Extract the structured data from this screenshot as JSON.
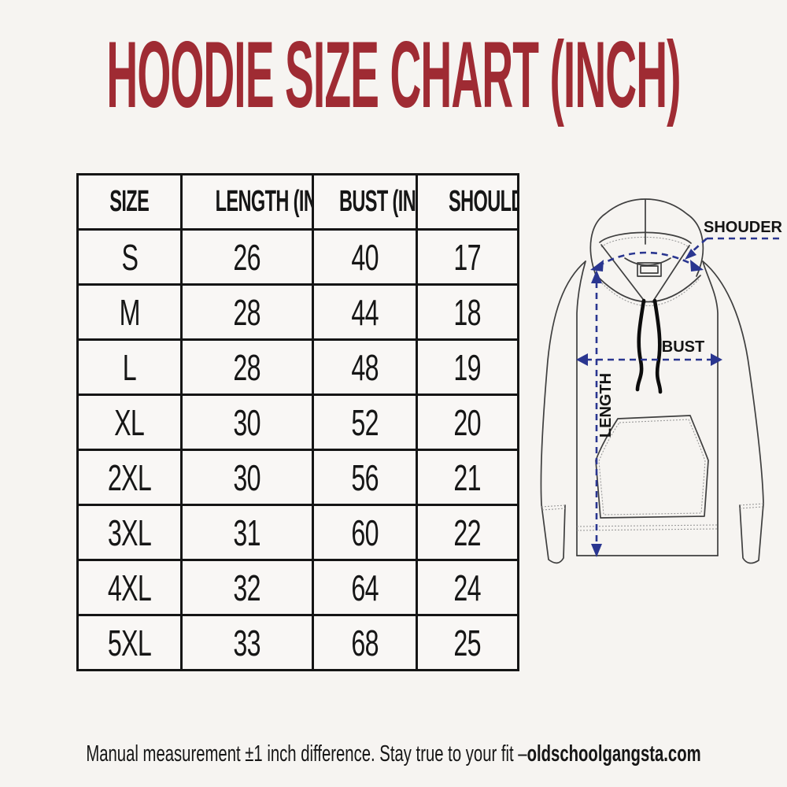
{
  "title": {
    "text": "HOODIE SIZE CHART (INCH)",
    "color": "#9f2b33"
  },
  "chart_data": {
    "type": "table",
    "title": "HOODIE SIZE CHART (INCH)",
    "columns": [
      "SIZE",
      "LENGTH (IN)",
      "BUST (IN)",
      "SHOULDER"
    ],
    "rows": [
      [
        "S",
        "26",
        "40",
        "17"
      ],
      [
        "M",
        "28",
        "44",
        "18"
      ],
      [
        "L",
        "28",
        "48",
        "19"
      ],
      [
        "XL",
        "30",
        "52",
        "20"
      ],
      [
        "2XL",
        "30",
        "56",
        "21"
      ],
      [
        "3XL",
        "31",
        "60",
        "22"
      ],
      [
        "4XL",
        "32",
        "64",
        "24"
      ],
      [
        "5XL",
        "33",
        "68",
        "25"
      ]
    ],
    "units": "inch"
  },
  "diagram": {
    "shoulder_label": "SHOUDER",
    "bust_label": "BUST",
    "length_label": "LENGTH",
    "arrow_color": "#2a3690",
    "line_color": "#3f3f3f"
  },
  "footer": {
    "note": "Manual measurement ±1 inch difference. Stay true to your fit –",
    "brand": "oldschoolgangsta.com"
  }
}
